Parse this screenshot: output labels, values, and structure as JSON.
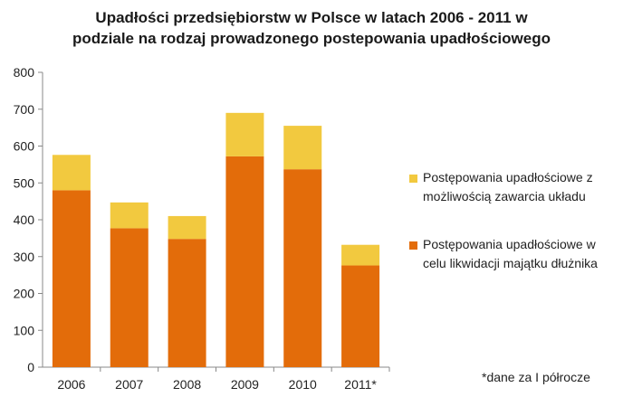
{
  "chart_data": {
    "type": "bar",
    "stacked": true,
    "title_lines": [
      "Upadłości przedsiębiorstw w Polsce w latach 2006 - 2011 w",
      "podziale na rodzaj prowadzonego postepowania upadłościowego"
    ],
    "categories": [
      "2006",
      "2007",
      "2008",
      "2009",
      "2010",
      "2011*"
    ],
    "series": [
      {
        "name": "Postępowania upadłościowe w celu likwidacji majątku dłużnika",
        "color": "#E36C0A",
        "values": [
          480,
          377,
          348,
          572,
          537,
          276
        ]
      },
      {
        "name": "Postępowania upadłościowe z możliwością zawarcia układu",
        "color": "#F2C93F",
        "values": [
          96,
          70,
          62,
          118,
          118,
          56
        ]
      }
    ],
    "ylim": [
      0,
      800
    ],
    "yticks": [
      "0",
      "100",
      "200",
      "300",
      "400",
      "500",
      "600",
      "700",
      "800"
    ],
    "grid": false,
    "legend_position": "right",
    "footnote": "*dane za I półrocze"
  }
}
